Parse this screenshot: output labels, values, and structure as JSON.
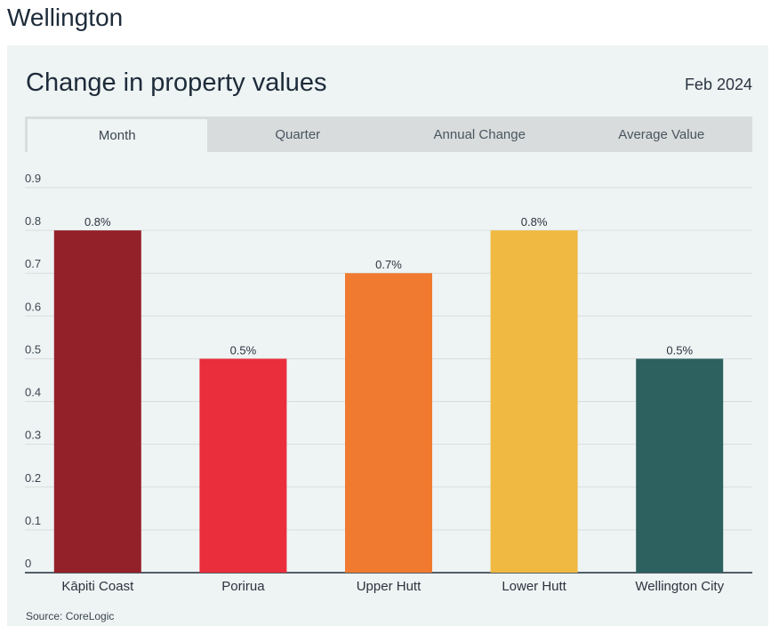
{
  "page": {
    "region": "Wellington",
    "card_title": "Change in property values",
    "date": "Feb 2024",
    "source": "Source: CoreLogic"
  },
  "tabs": [
    {
      "label": "Month",
      "active": true
    },
    {
      "label": "Quarter",
      "active": false
    },
    {
      "label": "Annual Change",
      "active": false
    },
    {
      "label": "Average Value",
      "active": false
    }
  ],
  "chart_data": {
    "type": "bar",
    "title": "Change in property values",
    "xlabel": "",
    "ylabel": "",
    "categories": [
      "Kāpiti Coast",
      "Porirua",
      "Upper Hutt",
      "Lower Hutt",
      "Wellington City"
    ],
    "values": [
      0.8,
      0.5,
      0.7,
      0.8,
      0.5
    ],
    "data_labels": [
      "0.8%",
      "0.5%",
      "0.7%",
      "0.8%",
      "0.5%"
    ],
    "colors": [
      "#93212a",
      "#ea2e3b",
      "#ef7a30",
      "#f0b942",
      "#2c6160"
    ],
    "ylim": [
      0,
      0.9
    ],
    "yticks": [
      "0",
      "0.1",
      "0.2",
      "0.3",
      "0.4",
      "0.5",
      "0.6",
      "0.7",
      "0.8",
      "0.9"
    ],
    "grid": true
  }
}
